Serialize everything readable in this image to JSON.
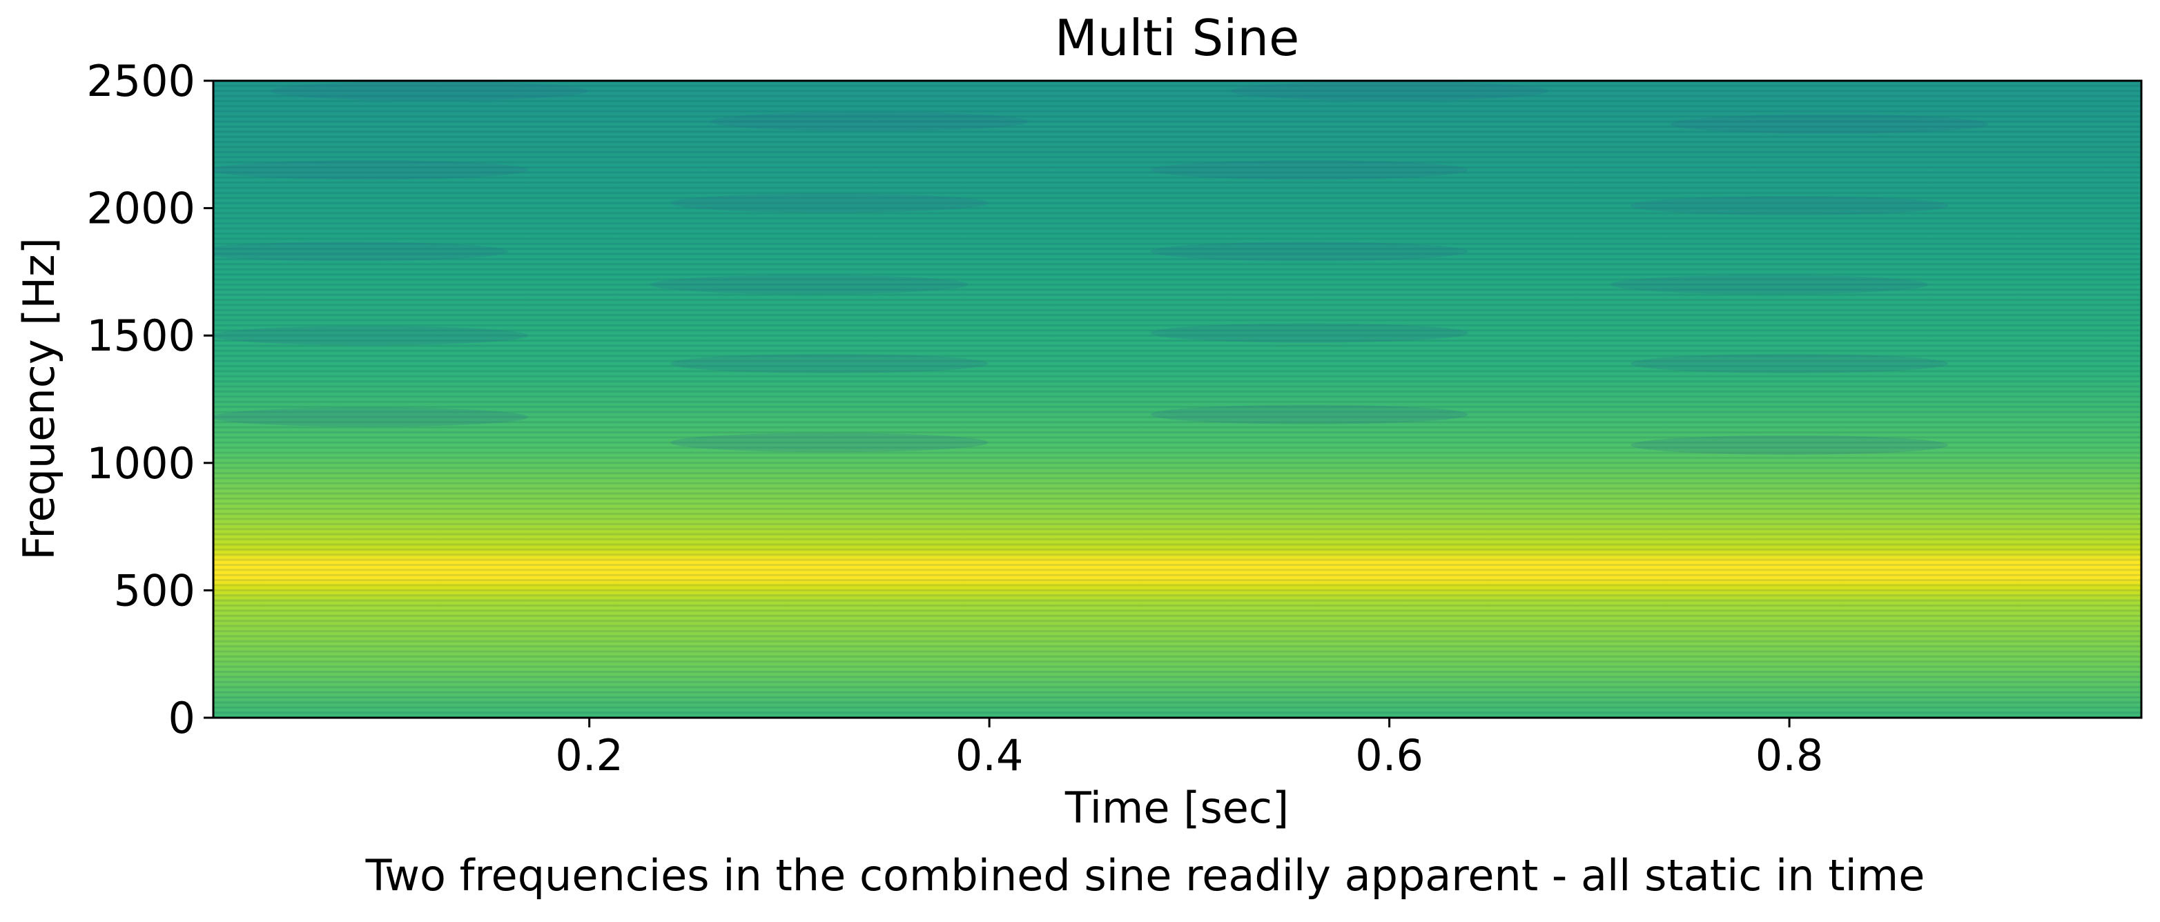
{
  "chart_data": {
    "type": "heatmap",
    "title": "Multi Sine",
    "title_color": "#0000ff",
    "xlabel": "Time [sec]",
    "ylabel": "Frequency [Hz]",
    "caption": "Two frequencies in the combined sine readily apparent - all static in time",
    "xlim": [
      0.012,
      0.976
    ],
    "ylim": [
      0,
      2500
    ],
    "x_ticks": [
      0.2,
      0.4,
      0.6,
      0.8
    ],
    "x_tick_labels": [
      "0.2",
      "0.4",
      "0.6",
      "0.8"
    ],
    "y_ticks": [
      0,
      500,
      1000,
      1500,
      2000,
      2500
    ],
    "y_tick_labels": [
      "0",
      "500",
      "1000",
      "1500",
      "2000",
      "2500"
    ],
    "colormap": "viridis",
    "grid": false,
    "frequency_bin_hz": 20,
    "peak_frequencies_hz": [
      550,
      625
    ],
    "background_color": "#1f9a8a",
    "peak_color": "#fde725",
    "low_band_color": "#a0da39"
  }
}
